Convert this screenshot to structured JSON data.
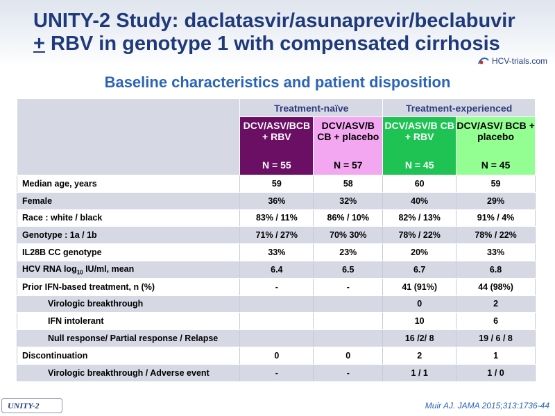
{
  "title": {
    "line1": "UNITY-2 Study: daclatasvir/asunaprevir/beclabuvir",
    "plus": "+",
    "line2_rest": " RBV in genotype 1 with compensated cirrhosis"
  },
  "logo": {
    "text": "HCV-trials.com",
    "icon": "logo-mark-icon"
  },
  "subtitle": "Baseline characteristics and patient disposition",
  "groups": [
    "Treatment-naïve",
    "Treatment-experienced"
  ],
  "arms": [
    {
      "name": "DCV/ASV/BCB + RBV",
      "n": "N = 55",
      "color": "#6a0f63"
    },
    {
      "name": "DCV/ASV/B CB + placebo",
      "n": "N = 57",
      "color": "#f3a7f1"
    },
    {
      "name": "DCV/ASV/B CB + RBV",
      "n": "N = 45",
      "color": "#1ec354"
    },
    {
      "name": "DCV/ASV/ BCB + placebo",
      "n": "N = 45",
      "color": "#93ff93"
    }
  ],
  "rows": [
    {
      "label": "Median age, years",
      "values": [
        "59",
        "58",
        "60",
        "59"
      ]
    },
    {
      "label": "Female",
      "values": [
        "36%",
        "32%",
        "40%",
        "29%"
      ]
    },
    {
      "label": "Race : white / black",
      "values": [
        "83% / 11%",
        "86% / 10%",
        "82% / 13%",
        "91% / 4%"
      ]
    },
    {
      "label": "Genotype : 1a / 1b",
      "values": [
        "71% / 27%",
        "70% 30%",
        "78% / 22%",
        "78% / 22%"
      ]
    },
    {
      "label": "IL28B CC genotype",
      "values": [
        "33%",
        "23%",
        "20%",
        "33%"
      ]
    },
    {
      "label_pre": "HCV RNA log",
      "label_sub": "10",
      "label_post": " IU/ml, mean",
      "values": [
        "6.4",
        "6.5",
        "6.7",
        "6.8"
      ]
    },
    {
      "label": "Prior IFN-based treatment, n (%)",
      "values": [
        "-",
        "-",
        "41 (91%)",
        "44 (98%)"
      ]
    },
    {
      "label": "Virologic breakthrough",
      "values": [
        "",
        "",
        "0",
        "2"
      ]
    },
    {
      "label": "IFN intolerant",
      "values": [
        "",
        "",
        "10",
        "6"
      ]
    },
    {
      "label": "Null response/ Partial response / Relapse",
      "values": [
        "",
        "",
        "16 /2/ 8",
        "19 / 6 / 8"
      ]
    },
    {
      "label": "Discontinuation",
      "values": [
        "0",
        "0",
        "2",
        "1"
      ]
    },
    {
      "label": "Virologic breakthrough / Adverse event",
      "values": [
        "-",
        "-",
        "1 / 1",
        "1 / 0"
      ]
    }
  ],
  "footer": {
    "tag": "UNITY-2",
    "citation": "Muir AJ. JAMA 2015;313:1736-44"
  }
}
